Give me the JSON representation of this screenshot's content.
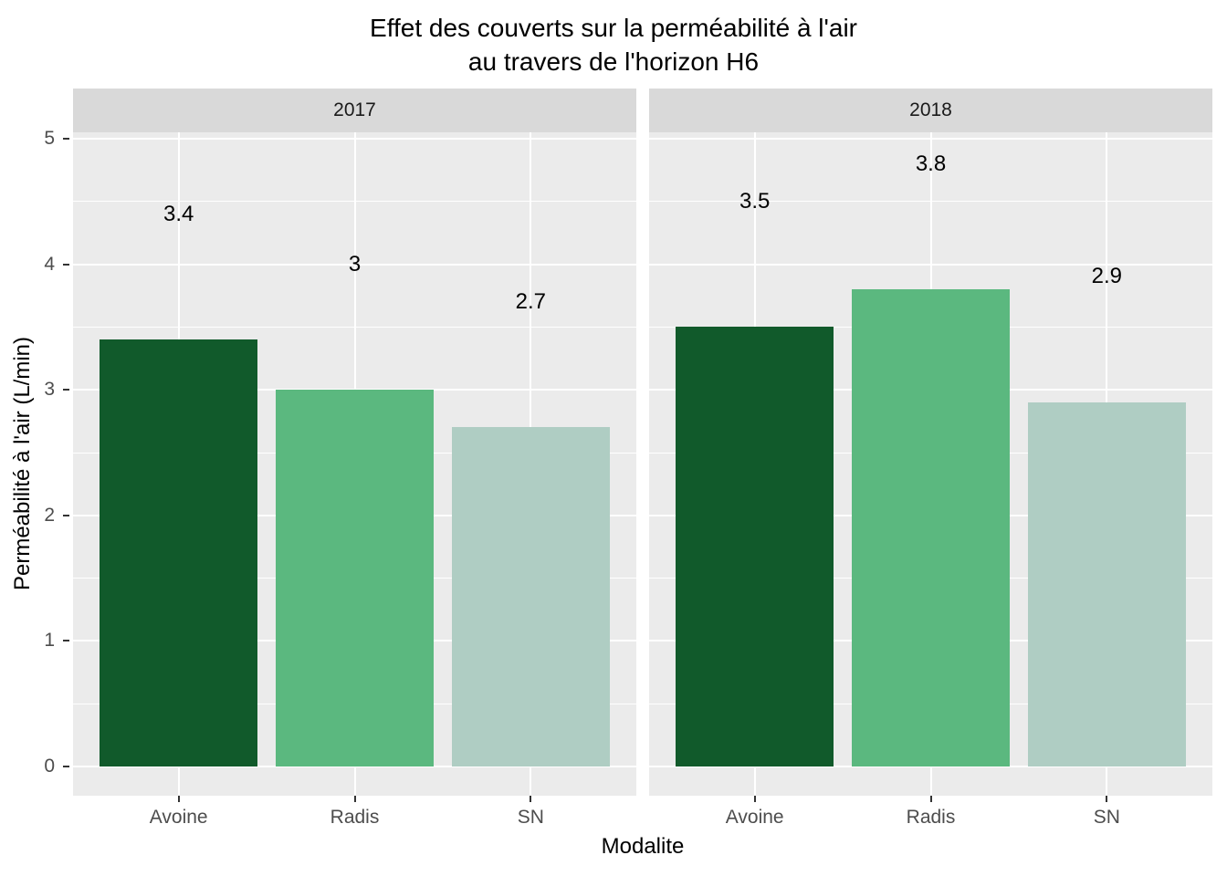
{
  "title": {
    "line1": "Effet des couverts sur la perméabilité à l'air",
    "line2": "au travers de l'horizon H6"
  },
  "chart_data": {
    "type": "bar",
    "title": "Effet des couverts sur la perméabilité à l'air au travers de l'horizon H6",
    "xlabel": "Modalite",
    "ylabel": "Perméabilité à l'air (L/min)",
    "categories": [
      "Avoine",
      "Radis",
      "SN"
    ],
    "facets": [
      {
        "label": "2017",
        "values": [
          3.4,
          3,
          2.7
        ],
        "value_labels": [
          "3.4",
          "3",
          "2.7"
        ]
      },
      {
        "label": "2018",
        "values": [
          3.5,
          3.8,
          2.9
        ],
        "value_labels": [
          "3.5",
          "3.8",
          "2.9"
        ]
      }
    ],
    "ylim": [
      0,
      5
    ],
    "y_ticks": [
      0,
      1,
      2,
      3,
      4,
      5
    ],
    "y_minor_ticks": [
      0.5,
      1.5,
      2.5,
      3.5,
      4.5
    ],
    "value_label_offset": 1,
    "bar_width_fraction": 0.9,
    "legend": "none",
    "grid": true,
    "bar_colors": [
      "#115a2b",
      "#5bb87f",
      "#afcdc3"
    ],
    "panel_bg": "#ebebeb",
    "strip_bg": "#d9d9d9",
    "grid_color": "#ffffff",
    "axis_text_color": "#4d4d4d",
    "tick_mark_color": "#333333",
    "text_color": "#000000"
  }
}
